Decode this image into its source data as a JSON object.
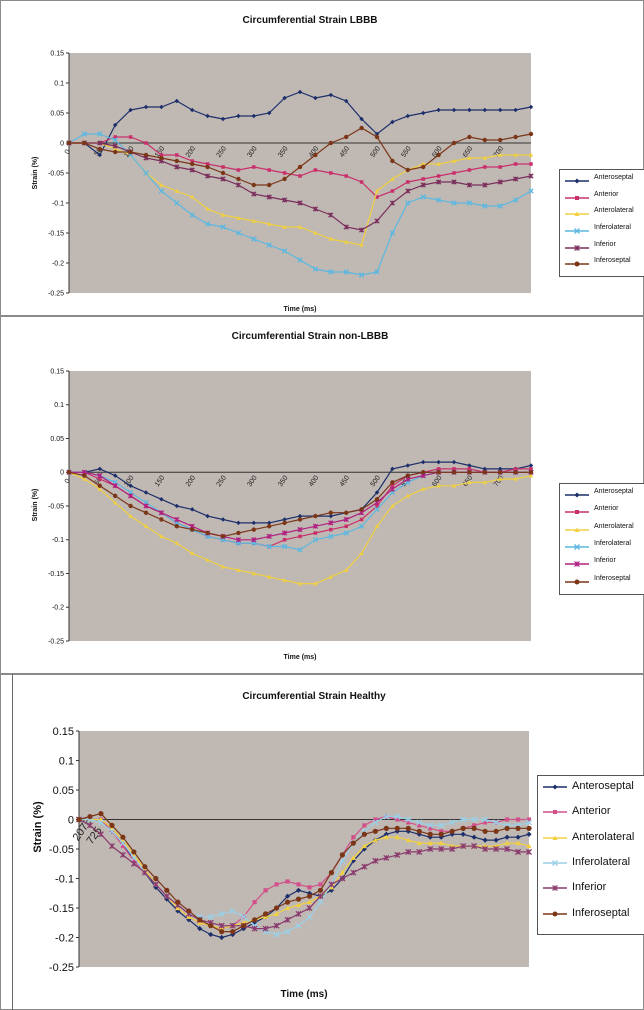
{
  "chart_data": [
    {
      "type": "line",
      "title": "Circumferential Strain LBBB",
      "xlabel": "Time (ms)",
      "ylabel": "Strain (%)",
      "ylim": [
        -0.25,
        0.15
      ],
      "yticks": [
        "0.15",
        "0.1",
        "0.05",
        "0",
        "-0.05",
        "-0.1",
        "-0.15",
        "-0.2",
        "-0.25"
      ],
      "xtick_labels": [
        "0",
        "50",
        "100",
        "150",
        "200",
        "250",
        "300",
        "350",
        "400",
        "450",
        "500",
        "550",
        "600",
        "650",
        "700"
      ],
      "x": [
        0,
        25,
        50,
        75,
        100,
        125,
        150,
        175,
        200,
        225,
        250,
        275,
        300,
        325,
        350,
        375,
        400,
        425,
        450,
        475,
        500,
        525,
        550,
        575,
        600,
        625,
        650,
        675,
        700,
        725,
        750
      ],
      "legend_position": "right",
      "series": [
        {
          "name": "Anteroseptal",
          "color": "#1c2f6b",
          "marker": "diamond",
          "values": [
            0,
            0,
            -0.02,
            0.03,
            0.055,
            0.06,
            0.06,
            0.07,
            0.055,
            0.045,
            0.04,
            0.045,
            0.045,
            0.05,
            0.075,
            0.085,
            0.075,
            0.08,
            0.07,
            0.04,
            0.015,
            0.035,
            0.045,
            0.05,
            0.055,
            0.055,
            0.055,
            0.055,
            0.055,
            0.055,
            0.06
          ]
        },
        {
          "name": "Anterior",
          "color": "#c9306b",
          "marker": "square",
          "values": [
            0,
            0,
            0,
            0.01,
            0.01,
            0,
            -0.02,
            -0.02,
            -0.03,
            -0.035,
            -0.04,
            -0.045,
            -0.04,
            -0.045,
            -0.05,
            -0.055,
            -0.045,
            -0.05,
            -0.055,
            -0.065,
            -0.09,
            -0.08,
            -0.065,
            -0.06,
            -0.055,
            -0.05,
            -0.045,
            -0.04,
            -0.04,
            -0.035,
            -0.035
          ]
        },
        {
          "name": "Anterolateral",
          "color": "#f0d040",
          "marker": "triangle",
          "values": [
            0,
            0,
            0,
            -0.01,
            -0.02,
            -0.05,
            -0.07,
            -0.08,
            -0.09,
            -0.11,
            -0.12,
            -0.125,
            -0.13,
            -0.135,
            -0.14,
            -0.14,
            -0.15,
            -0.16,
            -0.165,
            -0.17,
            -0.08,
            -0.06,
            -0.045,
            -0.035,
            -0.035,
            -0.03,
            -0.025,
            -0.025,
            -0.02,
            -0.02,
            -0.02
          ]
        },
        {
          "name": "Inferolateral",
          "color": "#5cb8e0",
          "marker": "x",
          "values": [
            0,
            0.015,
            0.015,
            0.005,
            -0.02,
            -0.05,
            -0.08,
            -0.1,
            -0.12,
            -0.135,
            -0.14,
            -0.15,
            -0.16,
            -0.17,
            -0.18,
            -0.195,
            -0.21,
            -0.215,
            -0.215,
            -0.22,
            -0.215,
            -0.15,
            -0.1,
            -0.09,
            -0.095,
            -0.1,
            -0.1,
            -0.105,
            -0.105,
            -0.095,
            -0.08
          ]
        },
        {
          "name": "Inferior",
          "color": "#7a2e5c",
          "marker": "star",
          "values": [
            0,
            0,
            0,
            -0.005,
            -0.015,
            -0.025,
            -0.03,
            -0.04,
            -0.045,
            -0.055,
            -0.06,
            -0.07,
            -0.085,
            -0.09,
            -0.095,
            -0.1,
            -0.11,
            -0.12,
            -0.14,
            -0.145,
            -0.13,
            -0.1,
            -0.08,
            -0.07,
            -0.065,
            -0.065,
            -0.07,
            -0.07,
            -0.065,
            -0.06,
            -0.055
          ]
        },
        {
          "name": "Inferoseptal",
          "color": "#7b3618",
          "marker": "circle",
          "values": [
            0,
            0,
            -0.01,
            -0.015,
            -0.015,
            -0.02,
            -0.025,
            -0.03,
            -0.035,
            -0.04,
            -0.05,
            -0.06,
            -0.07,
            -0.07,
            -0.06,
            -0.04,
            -0.02,
            0,
            0.01,
            0.025,
            0.01,
            -0.03,
            -0.045,
            -0.04,
            -0.02,
            0,
            0.01,
            0.005,
            0.005,
            0.01,
            0.015
          ]
        }
      ]
    },
    {
      "type": "line",
      "title": "Circumferential Strain non-LBBB",
      "xlabel": "Time (ms)",
      "ylabel": "Strain (%)",
      "ylim": [
        -0.25,
        0.15
      ],
      "yticks": [
        "0.15",
        "0.1",
        "0.05",
        "0",
        "-0.05",
        "-0.1",
        "-0.15",
        "-0.2",
        "-0.25"
      ],
      "xtick_labels": [
        "0",
        "50",
        "100",
        "150",
        "200",
        "250",
        "300",
        "350",
        "400",
        "450",
        "500",
        "550",
        "600",
        "650",
        "700"
      ],
      "x": [
        0,
        25,
        50,
        75,
        100,
        125,
        150,
        175,
        200,
        225,
        250,
        275,
        300,
        325,
        350,
        375,
        400,
        425,
        450,
        475,
        500,
        525,
        550,
        575,
        600,
        625,
        650,
        675,
        700,
        725,
        750
      ],
      "legend_position": "right",
      "series": [
        {
          "name": "Anteroseptal",
          "color": "#1c2f6b",
          "marker": "diamond",
          "values": [
            0,
            0,
            0.005,
            -0.005,
            -0.02,
            -0.03,
            -0.04,
            -0.05,
            -0.055,
            -0.065,
            -0.07,
            -0.075,
            -0.075,
            -0.075,
            -0.07,
            -0.065,
            -0.065,
            -0.065,
            -0.06,
            -0.055,
            -0.03,
            0.005,
            0.01,
            0.015,
            0.015,
            0.015,
            0.01,
            0.005,
            0.005,
            0.005,
            0.01
          ]
        },
        {
          "name": "Anterior",
          "color": "#c9306b",
          "marker": "square",
          "values": [
            0,
            0,
            -0.01,
            -0.02,
            -0.035,
            -0.05,
            -0.06,
            -0.075,
            -0.085,
            -0.095,
            -0.1,
            -0.105,
            -0.105,
            -0.11,
            -0.1,
            -0.095,
            -0.09,
            -0.085,
            -0.08,
            -0.07,
            -0.05,
            -0.02,
            -0.005,
            0,
            0.005,
            0.005,
            0.005,
            0,
            0,
            0.005,
            0.005
          ]
        },
        {
          "name": "Anterolateral",
          "color": "#f0d040",
          "marker": "triangle",
          "values": [
            0,
            -0.01,
            -0.025,
            -0.045,
            -0.065,
            -0.08,
            -0.095,
            -0.105,
            -0.12,
            -0.13,
            -0.14,
            -0.145,
            -0.15,
            -0.155,
            -0.16,
            -0.165,
            -0.165,
            -0.155,
            -0.145,
            -0.12,
            -0.08,
            -0.05,
            -0.035,
            -0.025,
            -0.02,
            -0.02,
            -0.015,
            -0.015,
            -0.01,
            -0.01,
            -0.005
          ]
        },
        {
          "name": "Inferolateral",
          "color": "#5cb8e0",
          "marker": "x",
          "values": [
            0,
            0,
            -0.005,
            -0.015,
            -0.03,
            -0.045,
            -0.06,
            -0.075,
            -0.085,
            -0.095,
            -0.1,
            -0.105,
            -0.105,
            -0.11,
            -0.11,
            -0.115,
            -0.1,
            -0.095,
            -0.09,
            -0.08,
            -0.055,
            -0.03,
            -0.015,
            -0.005,
            0,
            0,
            0,
            0,
            0,
            0,
            0
          ]
        },
        {
          "name": "Inferior",
          "color": "#b02080",
          "marker": "star",
          "values": [
            0,
            0,
            -0.005,
            -0.02,
            -0.035,
            -0.05,
            -0.06,
            -0.07,
            -0.08,
            -0.09,
            -0.095,
            -0.1,
            -0.1,
            -0.095,
            -0.09,
            -0.085,
            -0.08,
            -0.075,
            -0.07,
            -0.06,
            -0.045,
            -0.025,
            -0.01,
            -0.005,
            0,
            0,
            0,
            0,
            0,
            0,
            0
          ]
        },
        {
          "name": "Inferoseptal",
          "color": "#7b3618",
          "marker": "circle",
          "values": [
            0,
            -0.005,
            -0.02,
            -0.035,
            -0.05,
            -0.06,
            -0.07,
            -0.08,
            -0.085,
            -0.09,
            -0.095,
            -0.09,
            -0.085,
            -0.08,
            -0.075,
            -0.07,
            -0.065,
            -0.06,
            -0.06,
            -0.055,
            -0.04,
            -0.015,
            -0.005,
            0,
            0,
            0,
            0,
            0,
            0,
            0,
            0
          ]
        }
      ]
    },
    {
      "type": "line",
      "title": "Circumferential Strain Healthy",
      "xlabel": "Time (ms)",
      "ylabel": "Strain (%)",
      "ylim": [
        -0.25,
        0.15
      ],
      "yticks": [
        "0.15",
        "0.1",
        "0.05",
        "0",
        "-0.05",
        "-0.1",
        "-0.15",
        "-0.2",
        "-0.25"
      ],
      "xtick_labels": [
        "2075",
        "725"
      ],
      "x": [
        0,
        1,
        2,
        3,
        4,
        5,
        6,
        7,
        8,
        9,
        10,
        11,
        12,
        13,
        14,
        15,
        16,
        17,
        18,
        19,
        20,
        21,
        22,
        23,
        24,
        25,
        26,
        27,
        28,
        29,
        30,
        31,
        32,
        33,
        34,
        35,
        36,
        37,
        38,
        39,
        40,
        41
      ],
      "legend_position": "right",
      "series": [
        {
          "name": "Anteroseptal",
          "color": "#1c2f6b",
          "marker": "diamond",
          "values": [
            0,
            0,
            0,
            -0.02,
            -0.04,
            -0.07,
            -0.09,
            -0.115,
            -0.135,
            -0.155,
            -0.17,
            -0.185,
            -0.195,
            -0.2,
            -0.195,
            -0.185,
            -0.175,
            -0.165,
            -0.15,
            -0.13,
            -0.12,
            -0.125,
            -0.13,
            -0.12,
            -0.1,
            -0.07,
            -0.05,
            -0.035,
            -0.025,
            -0.02,
            -0.02,
            -0.025,
            -0.03,
            -0.03,
            -0.025,
            -0.025,
            -0.03,
            -0.035,
            -0.035,
            -0.03,
            -0.03,
            -0.025
          ]
        },
        {
          "name": "Anterior",
          "color": "#d2508a",
          "marker": "square",
          "values": [
            0,
            0,
            0,
            -0.02,
            -0.045,
            -0.07,
            -0.09,
            -0.11,
            -0.13,
            -0.15,
            -0.165,
            -0.175,
            -0.18,
            -0.185,
            -0.18,
            -0.165,
            -0.14,
            -0.12,
            -0.11,
            -0.105,
            -0.11,
            -0.115,
            -0.11,
            -0.09,
            -0.06,
            -0.03,
            -0.01,
            0,
            0.005,
            0,
            -0.005,
            -0.01,
            -0.015,
            -0.02,
            -0.02,
            -0.015,
            -0.01,
            -0.005,
            -0.005,
            0,
            0,
            0
          ]
        },
        {
          "name": "Anterolateral",
          "color": "#f0d040",
          "marker": "triangle",
          "values": [
            0,
            0,
            0,
            -0.015,
            -0.035,
            -0.06,
            -0.085,
            -0.11,
            -0.13,
            -0.15,
            -0.165,
            -0.175,
            -0.18,
            -0.185,
            -0.18,
            -0.175,
            -0.17,
            -0.165,
            -0.16,
            -0.15,
            -0.145,
            -0.14,
            -0.13,
            -0.115,
            -0.09,
            -0.065,
            -0.045,
            -0.035,
            -0.03,
            -0.03,
            -0.035,
            -0.04,
            -0.04,
            -0.04,
            -0.045,
            -0.045,
            -0.045,
            -0.045,
            -0.045,
            -0.04,
            -0.04,
            -0.045
          ]
        },
        {
          "name": "Inferolateral",
          "color": "#9ccfe6",
          "marker": "x",
          "values": [
            0,
            0,
            -0.005,
            -0.02,
            -0.04,
            -0.065,
            -0.09,
            -0.11,
            -0.13,
            -0.145,
            -0.16,
            -0.165,
            -0.165,
            -0.16,
            -0.155,
            -0.165,
            -0.18,
            -0.19,
            -0.195,
            -0.19,
            -0.18,
            -0.165,
            -0.14,
            -0.11,
            -0.07,
            -0.04,
            -0.02,
            -0.005,
            0.005,
            0.005,
            0,
            -0.005,
            -0.01,
            -0.01,
            -0.005,
            0,
            0,
            0,
            -0.005,
            -0.01,
            -0.01,
            -0.005
          ]
        },
        {
          "name": "Inferior",
          "color": "#8a3a6e",
          "marker": "star",
          "values": [
            0,
            -0.01,
            -0.025,
            -0.045,
            -0.06,
            -0.075,
            -0.09,
            -0.11,
            -0.13,
            -0.145,
            -0.16,
            -0.17,
            -0.175,
            -0.18,
            -0.18,
            -0.18,
            -0.185,
            -0.185,
            -0.18,
            -0.17,
            -0.16,
            -0.15,
            -0.13,
            -0.11,
            -0.1,
            -0.09,
            -0.08,
            -0.07,
            -0.065,
            -0.06,
            -0.055,
            -0.055,
            -0.05,
            -0.05,
            -0.05,
            -0.045,
            -0.045,
            -0.05,
            -0.05,
            -0.05,
            -0.055,
            -0.055
          ]
        },
        {
          "name": "Inferoseptal",
          "color": "#7b3618",
          "marker": "circle",
          "values": [
            0,
            0.005,
            0.01,
            -0.01,
            -0.03,
            -0.055,
            -0.08,
            -0.1,
            -0.12,
            -0.14,
            -0.155,
            -0.17,
            -0.18,
            -0.19,
            -0.19,
            -0.18,
            -0.17,
            -0.16,
            -0.15,
            -0.14,
            -0.135,
            -0.13,
            -0.12,
            -0.09,
            -0.06,
            -0.04,
            -0.025,
            -0.02,
            -0.015,
            -0.015,
            -0.015,
            -0.02,
            -0.025,
            -0.025,
            -0.02,
            -0.015,
            -0.015,
            -0.02,
            -0.02,
            -0.015,
            -0.015,
            -0.015
          ]
        }
      ]
    }
  ]
}
